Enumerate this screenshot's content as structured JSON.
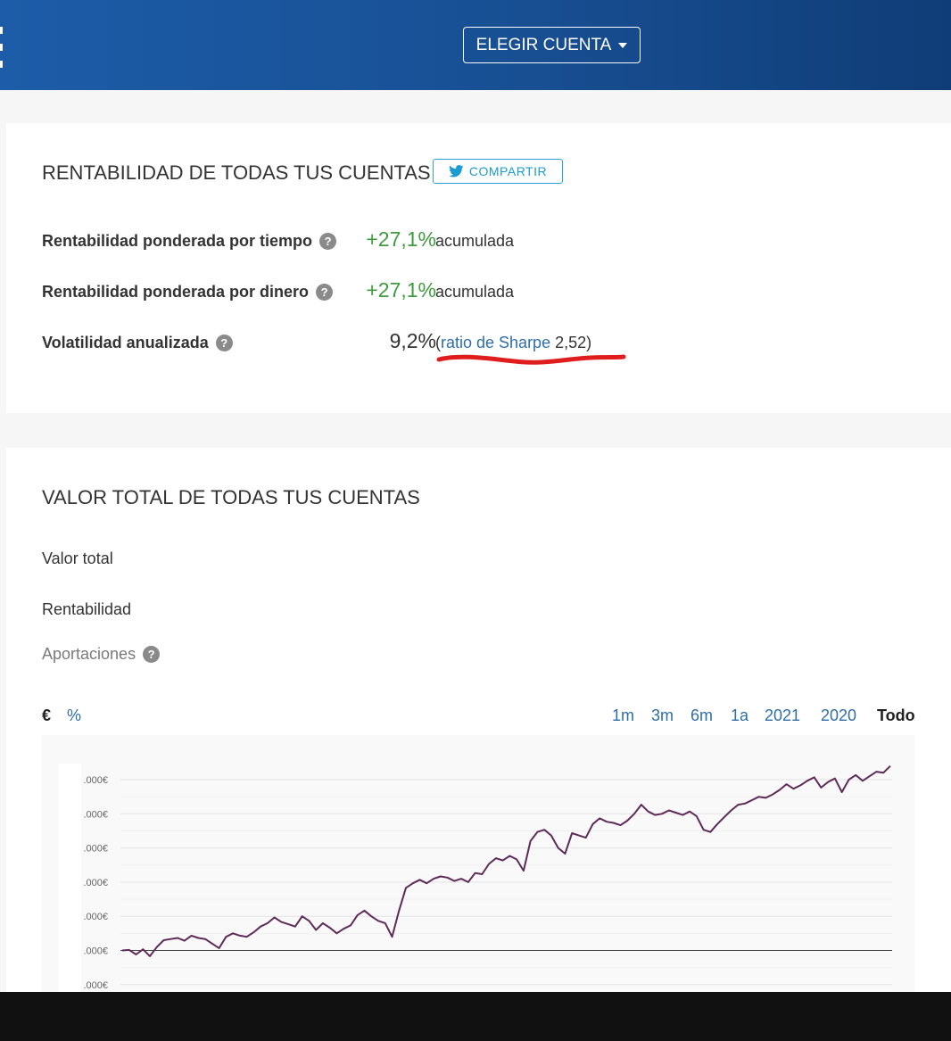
{
  "header": {
    "choose_account": "ELEGIR CUENTA"
  },
  "returns": {
    "title": "RENTABILIDAD DE TODAS TUS CUENTAS",
    "share_label": "COMPARTIR",
    "twr_label": "Rentabilidad ponderada por tiempo",
    "twr_value": "+27,1%",
    "twr_suffix": "acumulada",
    "mwr_label": "Rentabilidad ponderada por dinero",
    "mwr_value": "+27,1%",
    "mwr_suffix": "acumulada",
    "vol_label": "Volatilidad anualizada",
    "vol_value": "9,2%",
    "sharpe_open": "(",
    "sharpe_link": "ratio de Sharpe",
    "sharpe_value": "2,52)",
    "help_glyph": "?"
  },
  "value": {
    "title": "VALOR TOTAL DE TODAS TUS CUENTAS",
    "total_label": "Valor total",
    "return_label": "Rentabilidad",
    "contrib_label": "Aportaciones",
    "unit_euro": "€",
    "unit_percent": "%",
    "ranges": [
      "1m",
      "3m",
      "6m",
      "1a",
      "2021",
      "2020",
      "Todo"
    ],
    "active_range": "Todo"
  },
  "colors": {
    "header_blue": "#1c5ca8",
    "positive": "#3e9c3e",
    "link": "#2f6ea8",
    "series": "#5e2a58",
    "annotation_red": "#e01d1d"
  },
  "chart_data": {
    "type": "line",
    "title": "",
    "xlabel": "",
    "ylabel": "",
    "y_tick_labels": [
      ".000€",
      ".000€",
      ".000€",
      ".000€",
      ".000€",
      ".000€",
      ".000€"
    ],
    "baseline_index": 5,
    "grid": true,
    "series": [
      {
        "values": [
          0.0,
          0.05,
          -0.35,
          0.1,
          -0.5,
          0.3,
          0.9,
          1.0,
          1.1,
          0.85,
          1.3,
          1.1,
          1.0,
          0.6,
          0.2,
          1.2,
          1.5,
          1.3,
          1.2,
          1.6,
          2.1,
          2.4,
          2.9,
          2.5,
          2.3,
          2.1,
          3.0,
          2.6,
          1.8,
          2.4,
          2.0,
          1.5,
          1.9,
          2.2,
          3.1,
          3.5,
          3.0,
          2.6,
          2.4,
          1.2,
          3.5,
          5.5,
          5.9,
          6.2,
          5.9,
          6.3,
          6.5,
          6.4,
          6.1,
          6.3,
          6.0,
          6.8,
          6.7,
          7.6,
          8.1,
          7.9,
          8.3,
          8.0,
          7.0,
          9.6,
          10.4,
          10.6,
          10.1,
          9.0,
          8.5,
          10.3,
          10.1,
          9.9,
          11.1,
          11.6,
          11.3,
          11.2,
          11.0,
          11.4,
          12.0,
          12.8,
          12.2,
          11.9,
          12.0,
          12.3,
          12.1,
          11.9,
          12.2,
          11.8,
          10.6,
          10.4,
          11.1,
          11.7,
          12.3,
          12.8,
          12.9,
          13.2,
          13.5,
          13.4,
          13.7,
          14.1,
          14.6,
          14.2,
          14.5,
          14.9,
          15.2,
          14.3,
          14.8,
          15.1,
          13.9,
          15.0,
          15.4,
          14.9,
          15.3,
          15.7,
          15.6,
          16.2
        ]
      }
    ]
  }
}
